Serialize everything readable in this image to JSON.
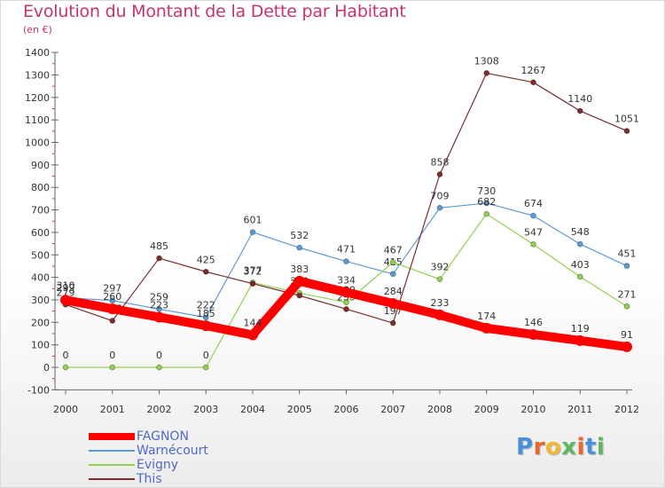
{
  "header": {
    "title": "Evolution du Montant de la Dette par Habitant",
    "subtitle": "(en €)"
  },
  "logo": {
    "text": "Proxiti"
  },
  "chart_data": {
    "type": "line",
    "title": "Evolution du Montant de la Dette par Habitant",
    "subtitle": "(en €)",
    "xlabel": "",
    "ylabel": "",
    "categories": [
      "2000",
      "2001",
      "2002",
      "2003",
      "2004",
      "2005",
      "2006",
      "2007",
      "2008",
      "2009",
      "2010",
      "2011",
      "2012"
    ],
    "ylim": [
      -100,
      1400
    ],
    "yticks": [
      -100,
      0,
      100,
      200,
      300,
      400,
      500,
      600,
      700,
      800,
      900,
      1000,
      1100,
      1200,
      1300,
      1400
    ],
    "grid": false,
    "legend_position": "bottom-left",
    "series": [
      {
        "name": "FAGNON",
        "color": "#ff0000",
        "values": [
          299,
          260,
          223,
          185,
          144,
          383,
          334,
          284,
          233,
          174,
          146,
          119,
          91
        ],
        "labels": [
          "299",
          "260",
          "223",
          "185",
          "144",
          "383",
          "334",
          "284",
          "233",
          "174",
          "146",
          "119",
          "91"
        ]
      },
      {
        "name": "Warnécourt",
        "color": "#5b9bd5",
        "values": [
          310,
          297,
          259,
          222,
          601,
          532,
          471,
          415,
          709,
          730,
          674,
          548,
          451
        ],
        "labels": [
          "310",
          "297",
          "259",
          "222",
          "601",
          "532",
          "471",
          "415",
          "709",
          "730",
          "674",
          "548",
          "451"
        ]
      },
      {
        "name": "Evigny",
        "color": "#92d050",
        "values": [
          0,
          0,
          0,
          0,
          377,
          330,
          289,
          467,
          392,
          682,
          547,
          403,
          271
        ],
        "labels": [
          "0",
          "0",
          "0",
          "0",
          "377",
          "330",
          "289",
          "467",
          "392",
          "682",
          "547",
          "403",
          "271"
        ]
      },
      {
        "name": "This",
        "color": "#7b2c2c",
        "values": [
          279,
          207,
          485,
          425,
          372,
          319,
          259,
          197,
          858,
          1308,
          1267,
          1140,
          1051
        ],
        "labels": [
          "279",
          "207",
          "485",
          "425",
          "372",
          "319",
          "259",
          "197",
          "858",
          "1308",
          "1267",
          "1140",
          "1051"
        ]
      }
    ]
  }
}
